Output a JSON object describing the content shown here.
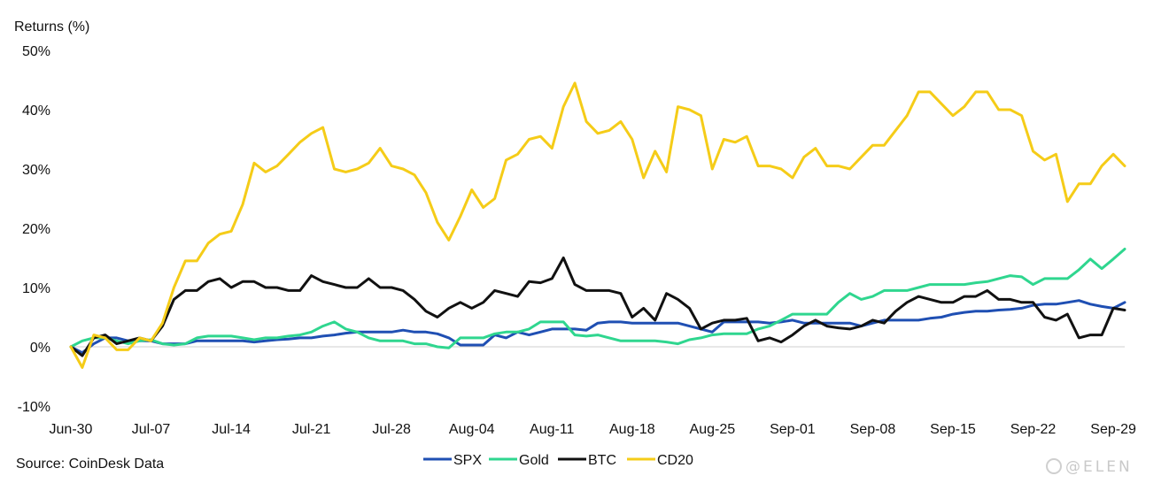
{
  "chart_data": {
    "type": "line",
    "title": "",
    "ylabel": "Returns (%)",
    "xlabel": "",
    "ylim": [
      -10,
      50
    ],
    "yticks": [
      -10,
      0,
      10,
      20,
      30,
      40,
      50
    ],
    "ytick_labels": [
      "-10%",
      "0%",
      "10%",
      "20%",
      "30%",
      "40%",
      "50%"
    ],
    "xticks": [
      {
        "index": 0,
        "label": "Jun-30"
      },
      {
        "index": 7,
        "label": "Jul-07"
      },
      {
        "index": 14,
        "label": "Jul-14"
      },
      {
        "index": 21,
        "label": "Jul-21"
      },
      {
        "index": 28,
        "label": "Jul-28"
      },
      {
        "index": 35,
        "label": "Aug-04"
      },
      {
        "index": 42,
        "label": "Aug-11"
      },
      {
        "index": 49,
        "label": "Aug-18"
      },
      {
        "index": 56,
        "label": "Aug-25"
      },
      {
        "index": 63,
        "label": "Sep-01"
      },
      {
        "index": 70,
        "label": "Sep-08"
      },
      {
        "index": 77,
        "label": "Sep-15"
      },
      {
        "index": 84,
        "label": "Sep-22"
      },
      {
        "index": 91,
        "label": "Sep-29"
      }
    ],
    "x_count": 93,
    "grid": false,
    "legend_position": "bottom-center",
    "series": [
      {
        "name": "SPX",
        "color": "#1f4fb3",
        "values": [
          0,
          -1,
          0.5,
          1.5,
          1.5,
          1,
          1,
          1,
          0.5,
          0.5,
          0.5,
          1,
          1,
          1,
          1,
          1,
          0.8,
          1,
          1.2,
          1.3,
          1.5,
          1.5,
          1.8,
          2,
          2.3,
          2.5,
          2.5,
          2.5,
          2.5,
          2.8,
          2.5,
          2.5,
          2.2,
          1.5,
          0.3,
          0.3,
          0.3,
          2,
          1.5,
          2.5,
          2,
          2.5,
          3,
          3,
          3,
          2.8,
          4,
          4.2,
          4.2,
          4,
          4,
          4,
          4,
          4,
          3.5,
          3,
          2.5,
          4.2,
          4.2,
          4.2,
          4.2,
          4,
          4.2,
          4.5,
          4,
          4,
          4,
          4,
          4,
          3.5,
          4,
          4.5,
          4.5,
          4.5,
          4.5,
          4.8,
          5,
          5.5,
          5.8,
          6,
          6,
          6.2,
          6.3,
          6.5,
          7,
          7.2,
          7.2,
          7.5,
          7.8,
          7.2,
          6.8,
          6.5,
          7.5
        ]
      },
      {
        "name": "Gold",
        "color": "#2fd68f",
        "values": [
          0,
          1,
          1.5,
          1.5,
          1,
          0.5,
          1,
          1.2,
          0.5,
          0.3,
          0.5,
          1.5,
          1.8,
          1.8,
          1.8,
          1.5,
          1.2,
          1.5,
          1.5,
          1.8,
          2,
          2.5,
          3.5,
          4.2,
          3,
          2.5,
          1.5,
          1,
          1,
          1,
          0.5,
          0.5,
          0,
          -0.2,
          1.5,
          1.5,
          1.5,
          2.2,
          2.5,
          2.5,
          3,
          4.2,
          4.2,
          4.2,
          2,
          1.8,
          2,
          1.5,
          1,
          1,
          1,
          1,
          0.8,
          0.5,
          1.2,
          1.5,
          2,
          2.2,
          2.2,
          2.2,
          3,
          3.5,
          4.5,
          5.5,
          5.5,
          5.5,
          5.5,
          7.5,
          9,
          8,
          8.5,
          9.5,
          9.5,
          9.5,
          10,
          10.5,
          10.5,
          10.5,
          10.5,
          10.8,
          11,
          11.5,
          12,
          11.8,
          10.5,
          11.5,
          11.5,
          11.5,
          13,
          14.8,
          13.2,
          14.8,
          16.5
        ]
      },
      {
        "name": "BTC",
        "color": "#111111",
        "values": [
          0,
          -1.5,
          1.5,
          2,
          0.5,
          1,
          1.5,
          1,
          3.5,
          8,
          9.5,
          9.5,
          11,
          11.5,
          10,
          11,
          11,
          10,
          10,
          9.5,
          9.5,
          12,
          11,
          10.5,
          10,
          10,
          11.5,
          10,
          10,
          9.5,
          8,
          6,
          5,
          6.5,
          7.5,
          6.5,
          7.5,
          9.5,
          9,
          8.5,
          11,
          10.8,
          11.5,
          15,
          10.5,
          9.5,
          9.5,
          9.5,
          9,
          5,
          6.5,
          4.5,
          9,
          8,
          6.5,
          3,
          4,
          4.5,
          4.5,
          4.8,
          1,
          1.5,
          0.8,
          2,
          3.5,
          4.5,
          3.5,
          3.2,
          3,
          3.5,
          4.5,
          4,
          6,
          7.5,
          8.5,
          8,
          7.5,
          7.5,
          8.5,
          8.5,
          9.5,
          8,
          8,
          7.5,
          7.5,
          5,
          4.5,
          5.5,
          1.5,
          2,
          2,
          6.5,
          6.2
        ]
      },
      {
        "name": "CD20",
        "color": "#f5cc18",
        "values": [
          0,
          -3.5,
          2,
          1.5,
          -0.5,
          -0.5,
          1.5,
          1,
          4,
          10,
          14.5,
          14.5,
          17.5,
          19,
          19.5,
          24,
          31,
          29.5,
          30.5,
          32.5,
          34.5,
          36,
          37,
          30,
          29.5,
          30,
          31,
          33.5,
          30.5,
          30,
          29,
          26,
          21,
          18,
          22,
          26.5,
          23.5,
          25,
          31.5,
          32.5,
          35,
          35.5,
          33.5,
          40.5,
          44.5,
          38,
          36,
          36.5,
          38,
          35,
          28.5,
          33,
          29.5,
          40.5,
          40,
          39,
          30,
          35,
          34.5,
          35.5,
          30.5,
          30.5,
          30,
          28.5,
          32,
          33.5,
          30.5,
          30.5,
          30,
          32,
          34,
          34,
          36.5,
          39,
          43,
          43,
          41,
          39,
          40.5,
          43,
          43,
          40,
          40,
          39,
          33,
          31.5,
          32.5,
          24.5,
          27.5,
          27.5,
          30.5,
          32.5,
          30.5
        ]
      }
    ],
    "source": "Source: CoinDesk Data"
  },
  "watermark": "@ELEN"
}
